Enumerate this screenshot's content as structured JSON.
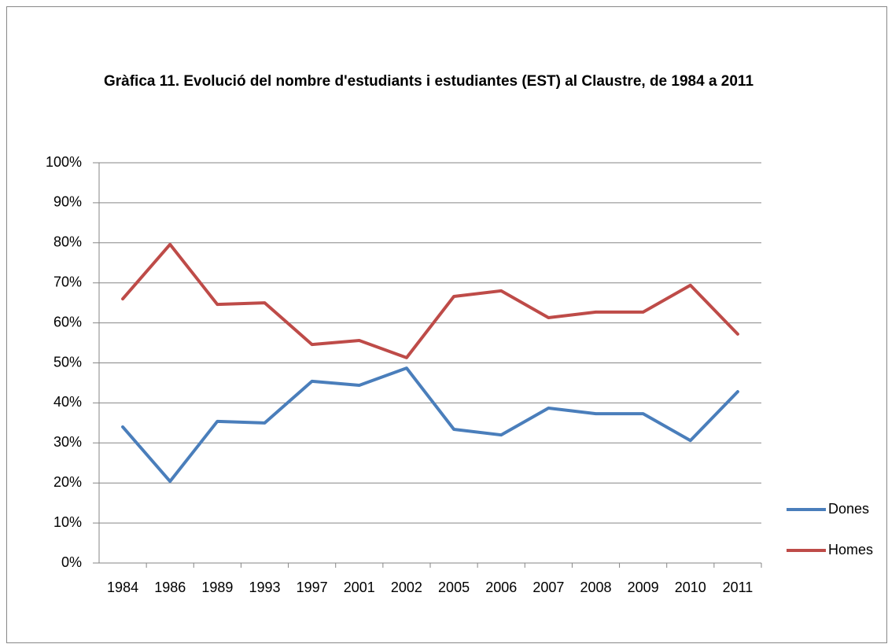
{
  "chart_data": {
    "type": "line",
    "title": "Gràfica 11. Evolució del nombre d'estudiants i estudiantes (EST) al Claustre, de 1984 a 2011",
    "categories": [
      "1984",
      "1986",
      "1989",
      "1993",
      "1997",
      "2001",
      "2002",
      "2005",
      "2006",
      "2007",
      "2008",
      "2009",
      "2010",
      "2011"
    ],
    "series": [
      {
        "name": "Dones",
        "color": "#4a7ebb",
        "values": [
          34.0,
          20.4,
          35.4,
          35.0,
          45.4,
          44.4,
          48.7,
          33.4,
          32.0,
          38.7,
          37.3,
          37.3,
          30.6,
          42.8
        ]
      },
      {
        "name": "Homes",
        "color": "#be4b48",
        "values": [
          66.0,
          79.6,
          64.6,
          65.0,
          54.6,
          55.6,
          51.3,
          66.6,
          68.0,
          61.3,
          62.7,
          62.7,
          69.4,
          57.2
        ]
      }
    ],
    "ylim": [
      0,
      100
    ],
    "yticks": [
      {
        "value": 0,
        "label": "0%"
      },
      {
        "value": 10,
        "label": "10%"
      },
      {
        "value": 20,
        "label": "20%"
      },
      {
        "value": 30,
        "label": "30%"
      },
      {
        "value": 40,
        "label": "40%"
      },
      {
        "value": 50,
        "label": "50%"
      },
      {
        "value": 60,
        "label": "60%"
      },
      {
        "value": 70,
        "label": "70%"
      },
      {
        "value": 80,
        "label": "80%"
      },
      {
        "value": 90,
        "label": "90%"
      },
      {
        "value": 100,
        "label": "100%"
      }
    ],
    "grid": true,
    "legend": "right"
  }
}
